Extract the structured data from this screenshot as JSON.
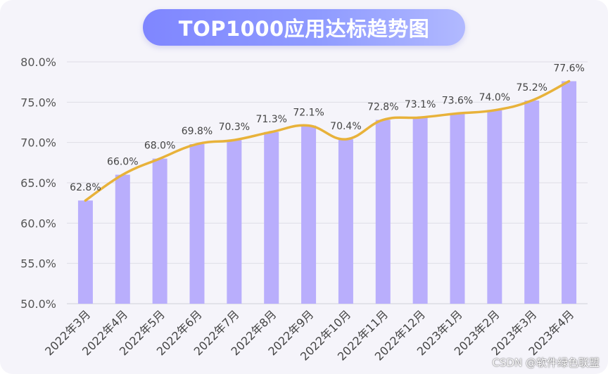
{
  "chart_data": {
    "type": "bar",
    "title": "TOP1000应用达标趋势图",
    "categories": [
      "2022年3月",
      "2022年4月",
      "2022年5月",
      "2022年6月",
      "2022年7月",
      "2022年8月",
      "2022年9月",
      "2022年10月",
      "2022年11月",
      "2022年12月",
      "2023年1月",
      "2023年2月",
      "2023年3月",
      "2023年4月"
    ],
    "values": [
      62.8,
      66.0,
      68.0,
      69.8,
      70.3,
      71.3,
      72.1,
      70.4,
      72.8,
      73.1,
      73.6,
      74.0,
      75.2,
      77.6
    ],
    "data_labels": [
      "62.8%",
      "66.0%",
      "68.0%",
      "69.8%",
      "70.3%",
      "71.3%",
      "72.1%",
      "70.4%",
      "72.8%",
      "73.1%",
      "73.6%",
      "74.0%",
      "75.2%",
      "77.6%"
    ],
    "overlay_line": "smoothed line through bar tops",
    "yticks": [
      "50.0%",
      "55.0%",
      "60.0%",
      "65.0%",
      "70.0%",
      "75.0%",
      "80.0%"
    ],
    "ylim": [
      50,
      80
    ],
    "grid": true,
    "legend": "none",
    "colors": {
      "bar": "#b9aefc",
      "line": "#e8b23a",
      "pill_start": "#7f86ff",
      "pill_end": "#b1b9ff"
    }
  },
  "watermark": "CSDN @软件绿色联盟"
}
